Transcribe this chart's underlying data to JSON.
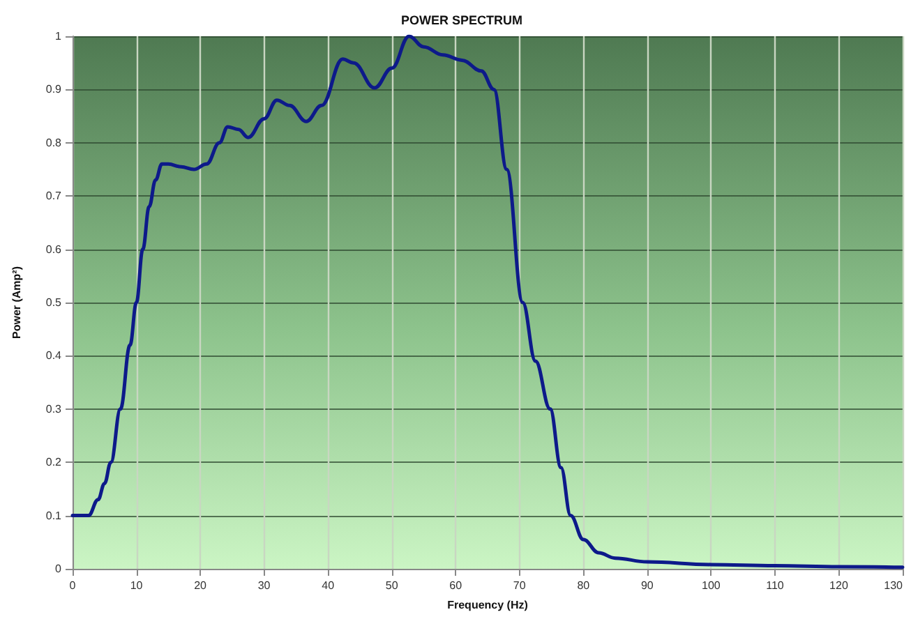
{
  "chart_data": {
    "type": "line",
    "title": "POWER SPECTRUM",
    "xlabel": "Frequency (Hz)",
    "ylabel": "Power (Amp²)",
    "x": [
      0,
      2,
      2.5,
      4,
      5,
      6,
      7.5,
      9,
      10,
      11,
      12,
      13,
      14,
      15,
      17,
      19,
      21,
      23,
      24.3,
      26,
      27.5,
      30,
      32,
      34,
      36.6,
      39,
      42.3,
      44,
      47.3,
      50,
      52.7,
      55,
      58,
      61,
      64,
      66,
      68,
      70.5,
      72.5,
      74.8,
      76.5,
      78,
      80,
      82.4,
      85,
      90,
      100,
      110,
      120,
      130
    ],
    "series": [
      {
        "color": "#0d1a8a",
        "values": [
          0.1,
          0.1,
          0.1,
          0.13,
          0.16,
          0.2,
          0.3,
          0.42,
          0.5,
          0.6,
          0.68,
          0.73,
          0.76,
          0.76,
          0.755,
          0.75,
          0.76,
          0.8,
          0.83,
          0.825,
          0.81,
          0.845,
          0.88,
          0.87,
          0.84,
          0.87,
          0.957,
          0.95,
          0.903,
          0.94,
          1.0,
          0.98,
          0.965,
          0.955,
          0.935,
          0.9,
          0.75,
          0.5,
          0.39,
          0.3,
          0.19,
          0.1,
          0.055,
          0.03,
          0.02,
          0.013,
          0.008,
          0.006,
          0.004,
          0.003
        ]
      }
    ],
    "xlim": [
      0,
      130
    ],
    "xticks": [
      0,
      10,
      20,
      30,
      40,
      50,
      60,
      70,
      80,
      90,
      100,
      110,
      120,
      130
    ],
    "ylim": [
      0,
      1
    ],
    "yticks": [
      0,
      0.1,
      0.2,
      0.3,
      0.4,
      0.5,
      0.6,
      0.7,
      0.8,
      0.9,
      1
    ],
    "grid": true,
    "line_style": "solid"
  }
}
